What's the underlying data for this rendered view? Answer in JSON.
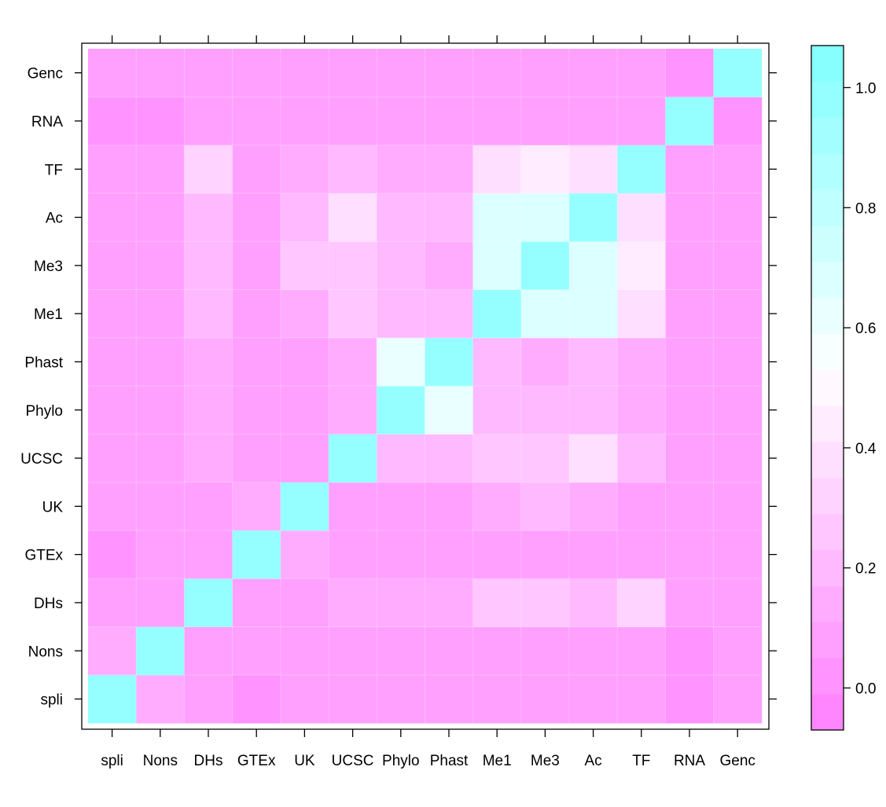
{
  "chart_data": {
    "type": "heatmap",
    "x_labels": [
      "spli",
      "Nons",
      "DHs",
      "GTEx",
      "UK",
      "UCSC",
      "Phylo",
      "Phast",
      "Me1",
      "Me3",
      "Ac",
      "TF",
      "RNA",
      "Genc"
    ],
    "y_labels": [
      "spli",
      "Nons",
      "DHs",
      "GTEx",
      "UK",
      "UCSC",
      "Phylo",
      "Phast",
      "Me1",
      "Me3",
      "Ac",
      "TF",
      "RNA",
      "Genc"
    ],
    "values": [
      [
        1.0,
        0.15,
        0.08,
        0.02,
        0.05,
        0.05,
        0.05,
        0.05,
        0.05,
        0.05,
        0.05,
        0.05,
        0.0,
        0.05
      ],
      [
        0.15,
        1.0,
        0.08,
        0.08,
        0.08,
        0.1,
        0.1,
        0.1,
        0.07,
        0.07,
        0.07,
        0.07,
        0.02,
        0.05
      ],
      [
        0.08,
        0.08,
        1.0,
        0.08,
        0.1,
        0.12,
        0.12,
        0.12,
        0.25,
        0.23,
        0.22,
        0.3,
        0.05,
        0.05
      ],
      [
        0.02,
        0.08,
        0.08,
        1.0,
        0.15,
        0.08,
        0.08,
        0.08,
        0.08,
        0.08,
        0.08,
        0.08,
        0.05,
        0.05
      ],
      [
        0.05,
        0.08,
        0.1,
        0.15,
        1.0,
        0.1,
        0.1,
        0.1,
        0.15,
        0.2,
        0.12,
        0.1,
        0.05,
        0.05
      ],
      [
        0.05,
        0.1,
        0.12,
        0.08,
        0.1,
        1.0,
        0.18,
        0.2,
        0.28,
        0.28,
        0.35,
        0.2,
        0.05,
        0.05
      ],
      [
        0.05,
        0.1,
        0.12,
        0.08,
        0.07,
        0.15,
        1.0,
        0.6,
        0.2,
        0.18,
        0.18,
        0.12,
        0.05,
        0.05
      ],
      [
        0.05,
        0.1,
        0.12,
        0.08,
        0.07,
        0.15,
        0.6,
        1.0,
        0.18,
        0.12,
        0.18,
        0.12,
        0.05,
        0.05
      ],
      [
        0.05,
        0.08,
        0.2,
        0.08,
        0.15,
        0.28,
        0.2,
        0.18,
        1.0,
        0.7,
        0.7,
        0.4,
        0.05,
        0.05
      ],
      [
        0.05,
        0.08,
        0.2,
        0.08,
        0.25,
        0.28,
        0.2,
        0.12,
        0.7,
        1.0,
        0.7,
        0.45,
        0.05,
        0.05
      ],
      [
        0.05,
        0.08,
        0.2,
        0.08,
        0.18,
        0.35,
        0.2,
        0.2,
        0.7,
        0.7,
        1.0,
        0.4,
        0.05,
        0.05
      ],
      [
        0.05,
        0.08,
        0.3,
        0.08,
        0.15,
        0.2,
        0.15,
        0.15,
        0.4,
        0.45,
        0.4,
        1.0,
        0.05,
        0.05
      ],
      [
        0.02,
        0.02,
        0.05,
        0.05,
        0.05,
        0.05,
        0.05,
        0.05,
        0.05,
        0.05,
        0.05,
        0.05,
        1.0,
        0.0
      ],
      [
        0.05,
        0.05,
        0.05,
        0.05,
        0.05,
        0.05,
        0.05,
        0.05,
        0.05,
        0.05,
        0.05,
        0.05,
        0.0,
        1.0
      ]
    ],
    "colorbar": {
      "min": -0.07,
      "max": 1.07,
      "step": 0.06,
      "ticks": [
        0.0,
        0.2,
        0.4,
        0.6,
        0.8,
        1.0
      ],
      "tick_labels": [
        "0.0",
        "0.2",
        "0.4",
        "0.6",
        "0.8",
        "1.0"
      ],
      "mid_value": 0.53,
      "low_color": "#ff80ff",
      "mid_color": "#ffffff",
      "high_color": "#80ffff"
    },
    "title": "",
    "xlabel": "",
    "ylabel": "",
    "grid": false,
    "legend": "colorbar-right"
  }
}
